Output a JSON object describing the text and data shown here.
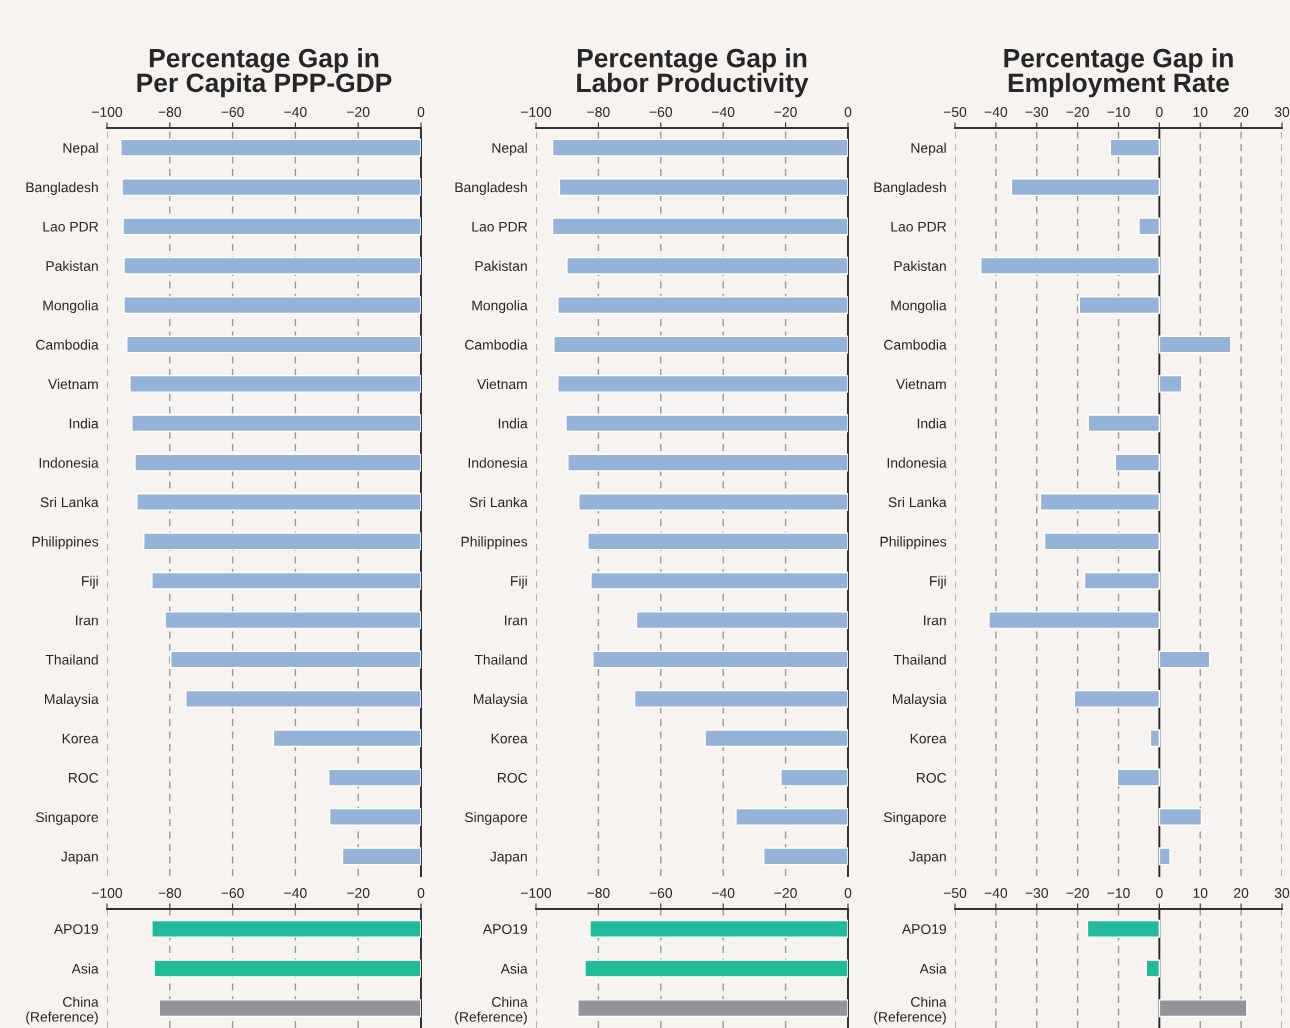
{
  "chart_data": [
    {
      "type": "bar",
      "orientation": "horizontal",
      "title": "Percentage Gap in\nPer Capita PPP-GDP",
      "categories": [
        "Nepal",
        "Bangladesh",
        "Lao PDR",
        "Pakistan",
        "Mongolia",
        "Cambodia",
        "Vietnam",
        "India",
        "Indonesia",
        "Sri Lanka",
        "Philippines",
        "Fiji",
        "Iran",
        "Thailand",
        "Malaysia",
        "Korea",
        "ROC",
        "Singapore",
        "Japan"
      ],
      "values": [
        -95.6,
        -95.2,
        -94.9,
        -94.6,
        -94.6,
        -93.7,
        -92.7,
        -92.1,
        -91.1,
        -90.5,
        -88.3,
        -85.7,
        -81.5,
        -79.7,
        -74.9,
        -47.0,
        -29.4,
        -29.1,
        -25.0
      ],
      "color": "#95b3d9",
      "xlim": [
        -100,
        0
      ],
      "xticks": [
        {
          "value": -100,
          "label": "−100"
        },
        {
          "value": -80,
          "label": "−80"
        },
        {
          "value": -60,
          "label": "−60"
        },
        {
          "value": -40,
          "label": "−40"
        },
        {
          "value": -20,
          "label": "−20"
        },
        0
      ],
      "grid": "x"
    },
    {
      "type": "bar",
      "orientation": "horizontal",
      "title": "Percentage Gap in\nLabor Productivity",
      "categories": [
        "Nepal",
        "Bangladesh",
        "Lao PDR",
        "Pakistan",
        "Mongolia",
        "Cambodia",
        "Vietnam",
        "India",
        "Indonesia",
        "Sri Lanka",
        "Philippines",
        "Fiji",
        "Iran",
        "Thailand",
        "Malaysia",
        "Korea",
        "ROC",
        "Singapore",
        "Japan"
      ],
      "values": [
        -94.7,
        -92.5,
        -94.7,
        -90.1,
        -93.0,
        -94.3,
        -93.0,
        -90.4,
        -89.8,
        -86.3,
        -83.4,
        -82.4,
        -67.8,
        -81.8,
        -68.4,
        -45.8,
        -21.5,
        -35.9,
        -27.0
      ],
      "color": "#95b3d9",
      "xlim": [
        -100,
        0
      ],
      "xticks": [
        {
          "value": -100,
          "label": "−100"
        },
        {
          "value": -80,
          "label": "−80"
        },
        {
          "value": -60,
          "label": "−60"
        },
        {
          "value": -40,
          "label": "−40"
        },
        {
          "value": -20,
          "label": "−20"
        },
        0
      ],
      "grid": "x"
    },
    {
      "type": "bar",
      "orientation": "horizontal",
      "title": "Percentage Gap in\nEmployment Rate",
      "categories": [
        "Nepal",
        "Bangladesh",
        "Lao PDR",
        "Pakistan",
        "Mongolia",
        "Cambodia",
        "Vietnam",
        "India",
        "Indonesia",
        "Sri Lanka",
        "Philippines",
        "Fiji",
        "Iran",
        "Thailand",
        "Malaysia",
        "Korea",
        "ROC",
        "Singapore",
        "Japan"
      ],
      "values": [
        -12.0,
        -36.2,
        -5.0,
        -43.7,
        -19.6,
        17.5,
        5.5,
        -17.4,
        -10.8,
        -29.1,
        -28.1,
        -18.3,
        -41.7,
        12.3,
        -20.8,
        -2.2,
        -10.3,
        10.3,
        2.6
      ],
      "color": "#95b3d9",
      "xlim": [
        -50,
        30
      ],
      "xticks": [
        {
          "value": -50,
          "label": "−50"
        },
        {
          "value": -40,
          "label": "−40"
        },
        {
          "value": -30,
          "label": "−30"
        },
        {
          "value": -20,
          "label": "−20"
        },
        {
          "value": -10,
          "label": "−10"
        },
        0,
        10,
        20,
        30
      ],
      "grid": "x"
    },
    {
      "type": "bar",
      "orientation": "horizontal",
      "categories": [
        "APO19",
        "Asia",
        "China\n(Reference)"
      ],
      "values": [
        -85.7,
        -85.0,
        -83.4
      ],
      "colors": [
        "#22bb9a",
        "#22bb9a",
        "#929497"
      ],
      "xlim": [
        -100,
        0
      ],
      "xticks": [
        {
          "value": -100,
          "label": "−100"
        },
        {
          "value": -80,
          "label": "−80"
        },
        {
          "value": -60,
          "label": "−60"
        },
        {
          "value": -40,
          "label": "−40"
        },
        {
          "value": -20,
          "label": "−20"
        },
        0
      ],
      "grid": "x"
    },
    {
      "type": "bar",
      "orientation": "horizontal",
      "categories": [
        "APO19",
        "Asia",
        "China\n(Reference)"
      ],
      "values": [
        -82.7,
        -84.3,
        -86.6
      ],
      "colors": [
        "#22bb9a",
        "#22bb9a",
        "#929497"
      ],
      "xlim": [
        -100,
        0
      ],
      "xticks": [
        {
          "value": -100,
          "label": "−100"
        },
        {
          "value": -80,
          "label": "−80"
        },
        {
          "value": -60,
          "label": "−60"
        },
        {
          "value": -40,
          "label": "−40"
        },
        {
          "value": -20,
          "label": "−20"
        },
        0
      ],
      "grid": "x"
    },
    {
      "type": "bar",
      "orientation": "horizontal",
      "categories": [
        "APO19",
        "Asia",
        "China\n(Reference)"
      ],
      "values": [
        -17.6,
        -3.2,
        21.4
      ],
      "colors": [
        "#22bb9a",
        "#22bb9a",
        "#929497"
      ],
      "xlim": [
        -50,
        30
      ],
      "xticks": [
        {
          "value": -50,
          "label": "−50"
        },
        {
          "value": -40,
          "label": "−40"
        },
        {
          "value": -30,
          "label": "−30"
        },
        {
          "value": -20,
          "label": "−20"
        },
        {
          "value": -10,
          "label": "−10"
        },
        0,
        10,
        20,
        30
      ],
      "grid": "x"
    }
  ]
}
